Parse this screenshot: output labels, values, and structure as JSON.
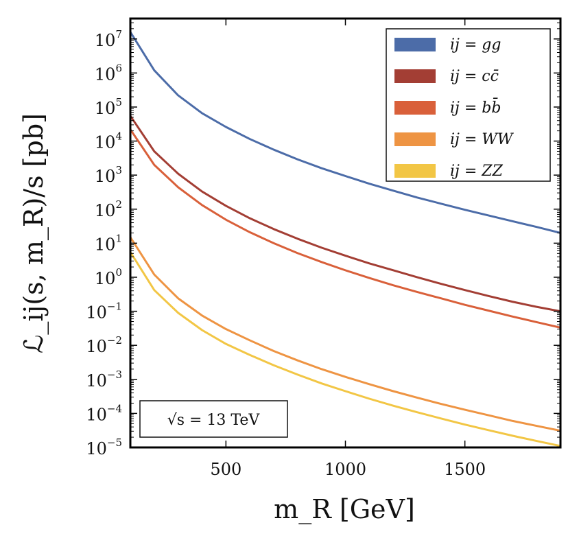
{
  "chart_data": {
    "type": "line",
    "title": "",
    "xlabel": "m_R [GeV]",
    "ylabel": "ℒ_ij(s, m_R)/s [pb]",
    "xlim": [
      100,
      1900
    ],
    "ylim_exp": [
      -5,
      7.6
    ],
    "yscale": "log",
    "x_ticks": [
      500,
      1000,
      1500
    ],
    "x_tick_labels": [
      "500",
      "1000",
      "1500"
    ],
    "y_tick_exponents": [
      -5,
      -4,
      -3,
      -2,
      -1,
      0,
      1,
      2,
      3,
      4,
      5,
      6,
      7
    ],
    "y_tick_base": "10",
    "grid": false,
    "legend_position": "top-right",
    "annotation": "√s = 13 TeV",
    "x": [
      100,
      200,
      300,
      400,
      500,
      600,
      700,
      800,
      900,
      1000,
      1100,
      1200,
      1300,
      1400,
      1500,
      1600,
      1700,
      1800,
      1900
    ],
    "series": [
      {
        "name": "ij = gg",
        "color": "#4c6ca8",
        "values": [
          16000000.0,
          1200000.0,
          220000.0,
          66000.0,
          26000.0,
          11500.0,
          5600.0,
          2900.0,
          1600.0,
          940.0,
          560.0,
          350.0,
          220.0,
          145.0,
          96.0,
          65.0,
          44.0,
          30.0,
          20.0
        ]
      },
      {
        "name": "ij = cc̄",
        "color": "#a33e34",
        "values": [
          55000.0,
          5000.0,
          1100.0,
          330.0,
          125.0,
          54.0,
          26.0,
          13.5,
          7.4,
          4.3,
          2.55,
          1.6,
          1.0,
          0.64,
          0.42,
          0.28,
          0.19,
          0.135,
          0.1
        ]
      },
      {
        "name": "ij = bb̄",
        "color": "#d9603a",
        "values": [
          22000.0,
          2000.0,
          440.0,
          132.0,
          49.0,
          21.0,
          10.0,
          5.1,
          2.8,
          1.6,
          0.95,
          0.58,
          0.37,
          0.24,
          0.155,
          0.104,
          0.07,
          0.048,
          0.033
        ]
      },
      {
        "name": "ij = WW",
        "color": "#ee9443",
        "values": [
          15,
          1.2,
          0.24,
          0.075,
          0.03,
          0.014,
          0.0068,
          0.0036,
          0.002,
          0.00118,
          0.00072,
          0.00045,
          0.00029,
          0.00019,
          0.000128,
          8.8e-05,
          6e-05,
          4.3e-05,
          3.1e-05
        ]
      },
      {
        "name": "ij = ZZ",
        "color": "#f2c645",
        "values": [
          5.5,
          0.42,
          0.09,
          0.028,
          0.011,
          0.0052,
          0.0026,
          0.00138,
          0.00076,
          0.00045,
          0.00027,
          0.000168,
          0.000108,
          7.1e-05,
          4.7e-05,
          3.2e-05,
          2.2e-05,
          1.55e-05,
          1.1e-05
        ]
      }
    ]
  }
}
